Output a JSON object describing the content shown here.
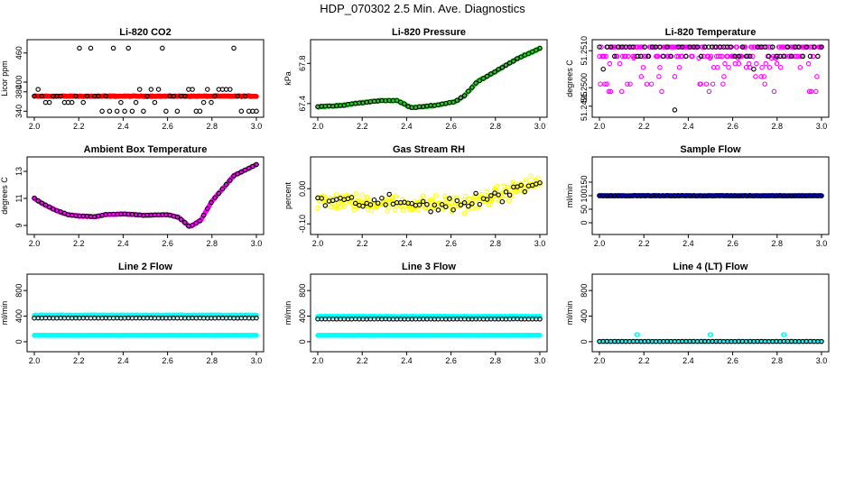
{
  "page": {
    "title": "HDP_070302  2.5 Min. Ave. Diagnostics"
  },
  "colors": {
    "black": "#000000",
    "red": "#ff0000",
    "green": "#22cc22",
    "magenta": "#ff00ff",
    "yellow": "#ffff00",
    "blue": "#0000cc",
    "cyan": "#00ffff"
  },
  "chart_data": [
    {
      "id": "co2",
      "type": "scatter",
      "title": "Li-820 CO2",
      "ylabel": "Licor ppm",
      "xlim": [
        2.0,
        3.0
      ],
      "ylim": [
        335,
        480
      ],
      "xticks": [
        "2.0",
        "2.2",
        "2.4",
        "2.6",
        "2.8",
        "3.0"
      ],
      "yticks": [
        {
          "v": 340,
          "label": "340"
        },
        {
          "v": 380,
          "label": "380"
        },
        {
          "v": 400,
          "label": "400"
        },
        {
          "v": 460,
          "label": "460"
        }
      ],
      "series": [
        {
          "name": "avg",
          "color": "red",
          "filled": true,
          "gen": "flat",
          "params": {
            "base": 371,
            "noise": 1.2
          }
        },
        {
          "name": "samples",
          "color": "black",
          "filled": false,
          "gen": "levels",
          "params": {
            "levels": [
              340,
              358,
              371,
              385,
              470
            ],
            "weights": [
              2,
              3,
              4,
              3,
              2
            ]
          }
        }
      ]
    },
    {
      "id": "pressure",
      "type": "scatter",
      "title": "Li-820 Pressure",
      "ylabel": "kPa",
      "xlim": [
        2.0,
        3.0
      ],
      "ylim": [
        67.3,
        68.0
      ],
      "xticks": [
        "2.0",
        "2.2",
        "2.4",
        "2.6",
        "2.8",
        "3.0"
      ],
      "yticks": [
        {
          "v": 67.4,
          "label": "67.4"
        },
        {
          "v": 67.8,
          "label": "67.8"
        }
      ],
      "series": [
        {
          "name": "avg",
          "color": "green",
          "filled": false,
          "gen": "curve",
          "params": {
            "points": [
              [
                2.0,
                67.37
              ],
              [
                2.1,
                67.38
              ],
              [
                2.2,
                67.41
              ],
              [
                2.28,
                67.43
              ],
              [
                2.36,
                67.43
              ],
              [
                2.42,
                67.36
              ],
              [
                2.48,
                67.37
              ],
              [
                2.55,
                67.39
              ],
              [
                2.62,
                67.42
              ],
              [
                2.66,
                67.48
              ],
              [
                2.72,
                67.62
              ],
              [
                2.8,
                67.72
              ],
              [
                2.9,
                67.85
              ],
              [
                3.0,
                67.95
              ]
            ],
            "noise": 0.008
          }
        },
        {
          "name": "samples",
          "color": "black",
          "filled": false,
          "gen": "curve",
          "params": {
            "points": [
              [
                2.0,
                67.37
              ],
              [
                2.1,
                67.38
              ],
              [
                2.2,
                67.41
              ],
              [
                2.28,
                67.43
              ],
              [
                2.36,
                67.43
              ],
              [
                2.42,
                67.36
              ],
              [
                2.48,
                67.37
              ],
              [
                2.55,
                67.39
              ],
              [
                2.62,
                67.42
              ],
              [
                2.66,
                67.48
              ],
              [
                2.72,
                67.62
              ],
              [
                2.8,
                67.72
              ],
              [
                2.9,
                67.85
              ],
              [
                3.0,
                67.95
              ]
            ],
            "noise": 0.006,
            "sparse": true
          }
        }
      ]
    },
    {
      "id": "licortemp",
      "type": "scatter",
      "title": "Li-820 Temperature",
      "ylabel": "degrees C",
      "xlim": [
        2.0,
        3.0
      ],
      "ylim": [
        51.2493,
        51.2512
      ],
      "xticks": [
        "2.0",
        "2.2",
        "2.4",
        "2.6",
        "2.8",
        "3.0"
      ],
      "yticks": [
        {
          "v": 51.2495,
          "label": "51.2495"
        },
        {
          "v": 51.25,
          "label": "51.2500"
        },
        {
          "v": 51.251,
          "label": "51.2510"
        }
      ],
      "series": [
        {
          "name": "avg",
          "color": "magenta",
          "filled": false,
          "gen": "levels",
          "params": {
            "levels": [
              51.2511,
              51.25085,
              51.2508,
              51.25065,
              51.25055,
              51.2503,
              51.2501,
              51.2499
            ],
            "weights": [
              12,
              6,
              1,
              1,
              1,
              1,
              1,
              1
            ]
          }
        },
        {
          "name": "samples",
          "color": "black",
          "filled": false,
          "gen": "levels",
          "params": {
            "levels": [
              51.2511,
              51.25085,
              51.2505,
              51.2494
            ],
            "weights": [
              12,
              5,
              1,
              0.2
            ],
            "sparse": true
          }
        }
      ]
    },
    {
      "id": "boxtemp",
      "type": "scatter",
      "title": "Ambient Box Temperature",
      "ylabel": "degrees C",
      "xlim": [
        2.0,
        3.0
      ],
      "ylim": [
        8.6,
        13.8
      ],
      "xticks": [
        "2.0",
        "2.2",
        "2.4",
        "2.6",
        "2.8",
        "3.0"
      ],
      "yticks": [
        {
          "v": 9,
          "label": "9"
        },
        {
          "v": 11,
          "label": "11"
        },
        {
          "v": 13,
          "label": "13"
        }
      ],
      "series": [
        {
          "name": "avg",
          "color": "magenta",
          "filled": true,
          "gen": "curve",
          "params": {
            "points": [
              [
                2.0,
                11.0
              ],
              [
                2.05,
                10.5
              ],
              [
                2.1,
                10.1
              ],
              [
                2.15,
                9.8
              ],
              [
                2.2,
                9.7
              ],
              [
                2.28,
                9.65
              ],
              [
                2.32,
                9.8
              ],
              [
                2.4,
                9.85
              ],
              [
                2.5,
                9.75
              ],
              [
                2.6,
                9.8
              ],
              [
                2.65,
                9.6
              ],
              [
                2.7,
                8.9
              ],
              [
                2.75,
                9.4
              ],
              [
                2.8,
                10.8
              ],
              [
                2.9,
                12.7
              ],
              [
                3.0,
                13.5
              ]
            ],
            "noise": 0.03
          }
        },
        {
          "name": "samples",
          "color": "black",
          "filled": false,
          "gen": "curve",
          "params": {
            "points": [
              [
                2.0,
                11.0
              ],
              [
                2.05,
                10.5
              ],
              [
                2.1,
                10.1
              ],
              [
                2.15,
                9.8
              ],
              [
                2.2,
                9.7
              ],
              [
                2.28,
                9.65
              ],
              [
                2.32,
                9.8
              ],
              [
                2.4,
                9.85
              ],
              [
                2.5,
                9.75
              ],
              [
                2.6,
                9.8
              ],
              [
                2.65,
                9.6
              ],
              [
                2.7,
                8.9
              ],
              [
                2.75,
                9.4
              ],
              [
                2.8,
                10.8
              ],
              [
                2.9,
                12.7
              ],
              [
                3.0,
                13.5
              ]
            ],
            "noise": 0.03,
            "sparse": true
          }
        }
      ]
    },
    {
      "id": "rh",
      "type": "scatter",
      "title": "Gas Stream RH",
      "ylabel": "percent",
      "xlim": [
        2.0,
        3.0
      ],
      "ylim": [
        -0.12,
        0.08
      ],
      "xticks": [
        "2.0",
        "2.2",
        "2.4",
        "2.6",
        "2.8",
        "3.0"
      ],
      "yticks": [
        {
          "v": -0.1,
          "label": "-0.10"
        },
        {
          "v": 0.0,
          "label": "0.00"
        }
      ],
      "series": [
        {
          "name": "avg",
          "color": "yellow",
          "filled": false,
          "gen": "curve",
          "params": {
            "points": [
              [
                2.0,
                -0.035
              ],
              [
                2.5,
                -0.045
              ],
              [
                2.7,
                -0.04
              ],
              [
                2.85,
                -0.01
              ],
              [
                3.0,
                0.02
              ]
            ],
            "noise": 0.035
          }
        },
        {
          "name": "samples",
          "color": "black",
          "filled": false,
          "gen": "curve",
          "params": {
            "points": [
              [
                2.0,
                -0.035
              ],
              [
                2.5,
                -0.045
              ],
              [
                2.7,
                -0.04
              ],
              [
                2.85,
                -0.01
              ],
              [
                3.0,
                0.02
              ]
            ],
            "noise": 0.03,
            "sparse": true
          }
        }
      ]
    },
    {
      "id": "sampleflow",
      "type": "scatter",
      "title": "Sample Flow",
      "ylabel": "ml/min",
      "xlim": [
        2.0,
        3.0
      ],
      "ylim": [
        -30,
        230
      ],
      "xticks": [
        "2.0",
        "2.2",
        "2.4",
        "2.6",
        "2.8",
        "3.0"
      ],
      "yticks": [
        {
          "v": 0,
          "label": "0"
        },
        {
          "v": 50,
          "label": "50"
        },
        {
          "v": 100,
          "label": "100"
        },
        {
          "v": 150,
          "label": "150"
        }
      ],
      "series": [
        {
          "name": "avg",
          "color": "blue",
          "filled": true,
          "gen": "flat",
          "params": {
            "base": 100,
            "noise": 0.8
          }
        },
        {
          "name": "samples",
          "color": "black",
          "filled": false,
          "gen": "flat",
          "params": {
            "base": 100,
            "noise": 0.8,
            "sparse": true
          }
        }
      ]
    },
    {
      "id": "line2",
      "type": "scatter",
      "title": "Line 2 Flow",
      "ylabel": "ml/min",
      "xlim": [
        2.0,
        3.0
      ],
      "ylim": [
        -100,
        1000
      ],
      "xticks": [
        "2.0",
        "2.2",
        "2.4",
        "2.6",
        "2.8",
        "3.0"
      ],
      "yticks": [
        {
          "v": 0,
          "label": "0"
        },
        {
          "v": 400,
          "label": "400"
        },
        {
          "v": 800,
          "label": "800"
        }
      ],
      "series": [
        {
          "name": "high",
          "color": "cyan",
          "filled": true,
          "gen": "flat",
          "params": {
            "base": 415,
            "noise": 5
          }
        },
        {
          "name": "low",
          "color": "cyan",
          "filled": true,
          "gen": "flat",
          "params": {
            "base": 100,
            "noise": 3
          }
        },
        {
          "name": "samples",
          "color": "black",
          "filled": false,
          "gen": "flat",
          "params": {
            "base": 370,
            "noise": 2,
            "sparse": true
          }
        }
      ]
    },
    {
      "id": "line3",
      "type": "scatter",
      "title": "Line 3 Flow",
      "ylabel": "ml/min",
      "xlim": [
        2.0,
        3.0
      ],
      "ylim": [
        -100,
        1000
      ],
      "xticks": [
        "2.0",
        "2.2",
        "2.4",
        "2.6",
        "2.8",
        "3.0"
      ],
      "yticks": [
        {
          "v": 0,
          "label": "0"
        },
        {
          "v": 400,
          "label": "400"
        },
        {
          "v": 800,
          "label": "800"
        }
      ],
      "series": [
        {
          "name": "high",
          "color": "cyan",
          "filled": true,
          "gen": "flat",
          "params": {
            "base": 395,
            "noise": 5
          }
        },
        {
          "name": "low",
          "color": "cyan",
          "filled": true,
          "gen": "flat",
          "params": {
            "base": 100,
            "noise": 3
          }
        },
        {
          "name": "samples",
          "color": "black",
          "filled": false,
          "gen": "flat",
          "params": {
            "base": 355,
            "noise": 2,
            "sparse": true
          }
        }
      ]
    },
    {
      "id": "line4",
      "type": "scatter",
      "title": "Line 4 (LT) Flow",
      "ylabel": "ml/min",
      "xlim": [
        2.0,
        3.0
      ],
      "ylim": [
        -100,
        1000
      ],
      "xticks": [
        "2.0",
        "2.2",
        "2.4",
        "2.6",
        "2.8",
        "3.0"
      ],
      "yticks": [
        {
          "v": 0,
          "label": "0"
        },
        {
          "v": 400,
          "label": "400"
        },
        {
          "v": 800,
          "label": "800"
        }
      ],
      "series": [
        {
          "name": "avg",
          "color": "cyan",
          "filled": false,
          "gen": "spikes",
          "params": {
            "base": 5,
            "spikes": [
              [
                2.17,
                110
              ],
              [
                2.5,
                110
              ],
              [
                2.83,
                110
              ]
            ]
          }
        },
        {
          "name": "samples",
          "color": "black",
          "filled": false,
          "gen": "flat",
          "params": {
            "base": 5,
            "noise": 1,
            "sparse": true
          }
        }
      ]
    }
  ]
}
